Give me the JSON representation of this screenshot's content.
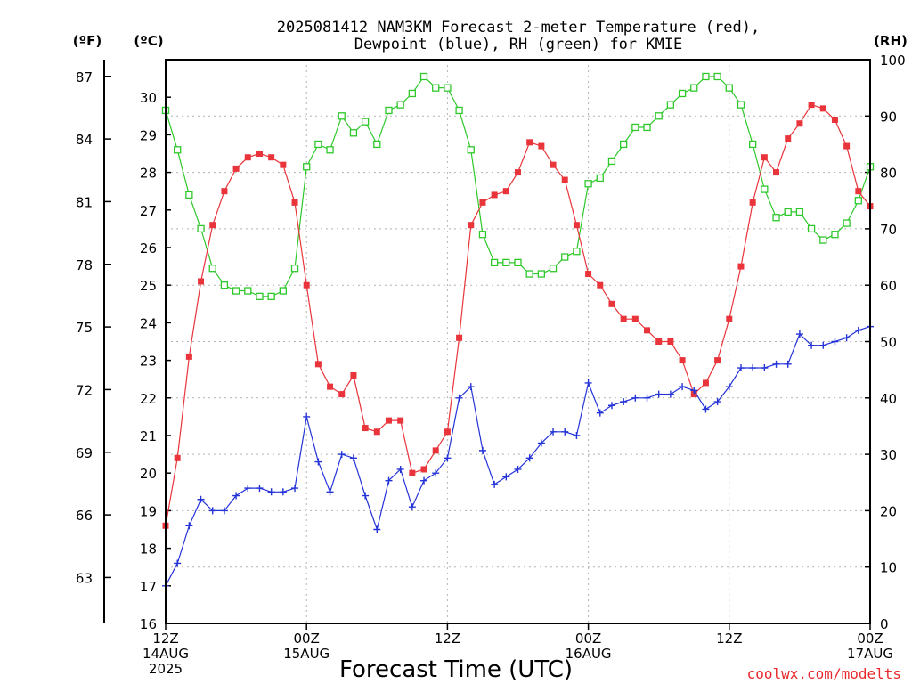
{
  "chart_data": {
    "type": "line",
    "title": [
      "2025081412 NAM3KM Forecast 2-meter Temperature (red),",
      "Dewpoint (blue), RH (green) for KMIE"
    ],
    "xlabel": "Forecast Time (UTC)",
    "credit": "coolwx.com/modelts",
    "left_units": {
      "f": "(ºF)",
      "c": "(ºC)"
    },
    "right_units": "(RH)",
    "x_hours_range": [
      0,
      60
    ],
    "x_ticks": [
      {
        "hour": 0,
        "lines": [
          "12Z",
          "14AUG",
          "2025"
        ]
      },
      {
        "hour": 12,
        "lines": [
          "00Z",
          "15AUG"
        ]
      },
      {
        "hour": 24,
        "lines": [
          "12Z"
        ]
      },
      {
        "hour": 36,
        "lines": [
          "00Z",
          "16AUG"
        ]
      },
      {
        "hour": 48,
        "lines": [
          "12Z"
        ]
      },
      {
        "hour": 60,
        "lines": [
          "00Z",
          "17AUG"
        ]
      }
    ],
    "c_range": [
      16,
      31
    ],
    "c_ticks": [
      "16",
      "17",
      "18",
      "19",
      "20",
      "21",
      "22",
      "23",
      "24",
      "25",
      "26",
      "27",
      "28",
      "29",
      "30"
    ],
    "f_ticks": [
      "63",
      "66",
      "69",
      "72",
      "75",
      "78",
      "81",
      "84",
      "87"
    ],
    "rh_range": [
      0,
      100
    ],
    "rh_ticks": [
      "0",
      "10",
      "20",
      "30",
      "40",
      "50",
      "60",
      "70",
      "80",
      "90",
      "100"
    ],
    "grid": true,
    "series": [
      {
        "name": "Temperature",
        "unit": "C",
        "color": "#e8343a",
        "marker": "filled-square",
        "values": [
          18.6,
          20.4,
          23.1,
          25.1,
          26.6,
          27.5,
          28.1,
          28.4,
          28.5,
          28.4,
          28.2,
          27.2,
          25.0,
          22.9,
          22.3,
          22.1,
          22.6,
          21.2,
          21.1,
          21.4,
          21.4,
          20.0,
          20.1,
          20.6,
          21.1,
          23.6,
          26.6,
          27.2,
          27.4,
          27.5,
          28.0,
          28.8,
          28.7,
          28.2,
          27.8,
          26.6,
          25.3,
          25.0,
          24.5,
          24.1,
          24.1,
          23.8,
          23.5,
          23.5,
          23.0,
          22.1,
          22.4,
          23.0,
          24.1,
          25.5,
          27.2,
          28.4,
          28.0,
          28.9,
          29.3,
          29.8,
          29.7,
          29.4,
          28.7,
          27.5,
          27.1
        ]
      },
      {
        "name": "Dewpoint",
        "unit": "C",
        "color": "#2433d8",
        "marker": "plus",
        "values": [
          17.0,
          17.6,
          18.6,
          19.3,
          19.0,
          19.0,
          19.4,
          19.6,
          19.6,
          19.5,
          19.5,
          19.6,
          21.5,
          20.3,
          19.5,
          20.5,
          20.4,
          19.4,
          18.5,
          19.8,
          20.1,
          19.1,
          19.8,
          20.0,
          20.4,
          22.0,
          22.3,
          20.6,
          19.7,
          19.9,
          20.1,
          20.4,
          20.8,
          21.1,
          21.1,
          21.0,
          22.4,
          21.6,
          21.8,
          21.9,
          22.0,
          22.0,
          22.1,
          22.1,
          22.3,
          22.2,
          21.7,
          21.9,
          22.3,
          22.8,
          22.8,
          22.8,
          22.9,
          22.9,
          23.7,
          23.4,
          23.4,
          23.5,
          23.6,
          23.8,
          23.9
        ]
      },
      {
        "name": "RH",
        "unit": "%",
        "color": "#2ec82a",
        "marker": "open-square",
        "values": [
          91,
          84,
          76,
          70,
          63,
          60,
          59,
          59,
          58,
          58,
          59,
          63,
          81,
          85,
          84,
          90,
          87,
          89,
          85,
          91,
          92,
          94,
          97,
          95,
          95,
          91,
          84,
          69,
          64,
          64,
          64,
          62,
          62,
          63,
          65,
          66,
          78,
          79,
          82,
          85,
          88,
          88,
          90,
          92,
          94,
          95,
          97,
          97,
          95,
          92,
          85,
          77,
          72,
          73,
          73,
          70,
          68,
          69,
          71,
          75,
          81
        ]
      }
    ]
  }
}
